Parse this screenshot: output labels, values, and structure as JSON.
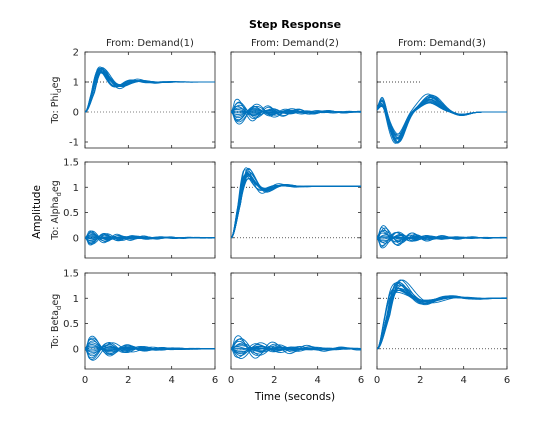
{
  "chart_data": {
    "type": "line",
    "title": "Step Response",
    "xlabel": "Time (seconds)",
    "ylabel": "Amplitude",
    "xlim": [
      0,
      6
    ],
    "xticks": [
      0,
      2,
      4,
      6
    ],
    "input_titles": [
      "From: Demand(1)",
      "From: Demand(2)",
      "From: Demand(3)"
    ],
    "output_labels": [
      {
        "base": "To: Phi",
        "sub": "d",
        "tail": "eg"
      },
      {
        "base": "To: Alpha",
        "sub": "d",
        "tail": "eg"
      },
      {
        "base": "To: Beta",
        "sub": "d",
        "tail": "eg"
      }
    ],
    "rows": [
      {
        "ylim": [
          -1.2,
          2
        ],
        "yticks": [
          -1,
          0,
          1,
          2
        ],
        "ytick_labels": [
          "-1",
          "0",
          "1",
          "2"
        ]
      },
      {
        "ylim": [
          -0.4,
          1.5
        ],
        "yticks": [
          0,
          0.5,
          1,
          1.5
        ],
        "ytick_labels": [
          "0",
          "0.5",
          "1",
          "1.5"
        ]
      },
      {
        "ylim": [
          -0.4,
          1.5
        ],
        "yticks": [
          0,
          0.5,
          1,
          1.5
        ],
        "ytick_labels": [
          "0",
          "0.5",
          "1",
          "1.5"
        ]
      }
    ],
    "setpoint_lines": [
      {
        "row": 0,
        "col": 0,
        "y": 1,
        "x_end": 1.0
      },
      {
        "row": 0,
        "col": 2,
        "y": 1,
        "x_end": 2.0
      },
      {
        "row": 1,
        "col": 1,
        "y": 1,
        "x_end": 1.0
      },
      {
        "row": 2,
        "col": 2,
        "y": 1,
        "x_end": 1.0
      }
    ],
    "line_color": "#0072bd",
    "setpoint_color": "#000000",
    "n_samples": 16,
    "responses": [
      [
        {
          "type": "track",
          "final": 1,
          "peak": [
            1.35,
            1.65
          ],
          "rise": [
            0.5,
            0.75
          ],
          "freq": [
            3.0,
            4.2
          ],
          "decay": [
            0.9,
            1.5
          ]
        },
        {
          "type": "coupling",
          "amp": [
            -0.5,
            0.5
          ],
          "freq": [
            3.6,
            4.6
          ],
          "decay": [
            0.45,
            0.75
          ],
          "phase": [
            -0.3,
            0.3
          ]
        },
        {
          "type": "coupling3",
          "final": 0,
          "dip": [
            -1.05,
            -0.7
          ],
          "dipT": [
            0.85,
            1.05
          ],
          "peak": [
            0.3,
            0.6
          ],
          "peakT": [
            2.3,
            2.6
          ]
        }
      ],
      [
        {
          "type": "coupling",
          "amp": [
            -0.18,
            0.18
          ],
          "freq": [
            4.2,
            5.2
          ],
          "decay": [
            0.5,
            0.85
          ],
          "phase": [
            -0.3,
            0.3
          ]
        },
        {
          "type": "track",
          "final": 1.02,
          "peak": [
            1.22,
            1.48
          ],
          "rise": [
            0.55,
            0.75
          ],
          "freq": [
            3.2,
            4.2
          ],
          "decay": [
            1.3,
            1.9
          ]
        },
        {
          "type": "coupling",
          "amp": [
            -0.25,
            0.3
          ],
          "freq": [
            3.8,
            5.0
          ],
          "decay": [
            0.45,
            0.8
          ],
          "phase": [
            -0.5,
            0.5
          ]
        }
      ],
      [
        {
          "type": "coupling",
          "amp": [
            -0.3,
            0.32
          ],
          "freq": [
            3.4,
            4.2
          ],
          "decay": [
            0.55,
            0.9
          ],
          "phase": [
            0.0,
            0.2
          ]
        },
        {
          "type": "coupling",
          "amp": [
            -0.25,
            0.3
          ],
          "freq": [
            3.3,
            4.2
          ],
          "decay": [
            0.4,
            0.7
          ],
          "phase": [
            -0.3,
            0.3
          ]
        },
        {
          "type": "track",
          "final": 1.0,
          "peak": [
            1.15,
            1.48
          ],
          "rise": [
            0.6,
            1.0
          ],
          "freq": [
            2.0,
            2.7
          ],
          "decay": [
            0.7,
            1.2
          ]
        }
      ]
    ]
  }
}
